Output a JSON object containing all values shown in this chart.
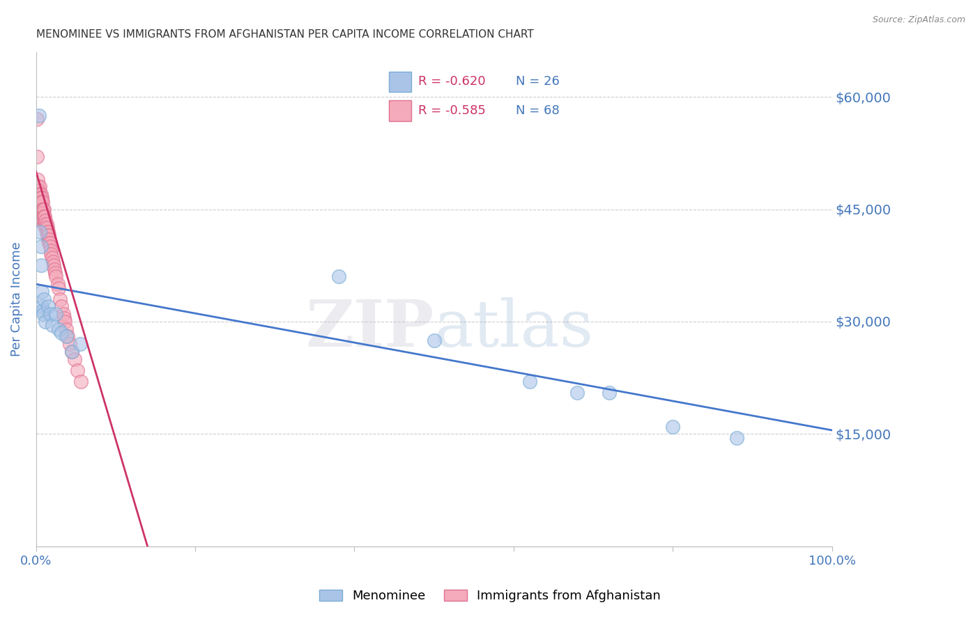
{
  "title": "MENOMINEE VS IMMIGRANTS FROM AFGHANISTAN PER CAPITA INCOME CORRELATION CHART",
  "source": "Source: ZipAtlas.com",
  "ylabel": "Per Capita Income",
  "watermark_zip": "ZIP",
  "watermark_atlas": "atlas",
  "legend_blue_r": "R = -0.620",
  "legend_blue_n": "N = 26",
  "legend_pink_r": "R = -0.585",
  "legend_pink_n": "N = 68",
  "legend_label_blue": "Menominee",
  "legend_label_pink": "Immigrants from Afghanistan",
  "blue_scatter_color": "#AAC4E8",
  "blue_scatter_edge": "#7AADD4",
  "pink_scatter_color": "#F4AABB",
  "pink_scatter_edge": "#E07090",
  "line_blue_color": "#4477CC",
  "line_pink_color": "#CC3366",
  "xlim": [
    0.0,
    1.0
  ],
  "ylim": [
    0,
    66000
  ],
  "yticks": [
    0,
    15000,
    30000,
    45000,
    60000
  ],
  "ytick_labels": [
    "",
    "$15,000",
    "$30,000",
    "$45,000",
    "$60,000"
  ],
  "xtick_positions": [
    0.0,
    0.2,
    0.4,
    0.6,
    0.8,
    1.0
  ],
  "xtick_labels": [
    "0.0%",
    "",
    "",
    "",
    "",
    "100.0%"
  ],
  "blue_x": [
    0.004,
    0.005,
    0.006,
    0.006,
    0.007,
    0.007,
    0.008,
    0.009,
    0.01,
    0.012,
    0.015,
    0.018,
    0.02,
    0.025,
    0.028,
    0.032,
    0.038,
    0.045,
    0.055,
    0.38,
    0.5,
    0.62,
    0.68,
    0.72,
    0.8,
    0.88
  ],
  "blue_y": [
    57500,
    42000,
    40000,
    37500,
    34000,
    32000,
    31500,
    31000,
    33000,
    30000,
    32000,
    31000,
    29500,
    31000,
    29000,
    28500,
    28000,
    26000,
    27000,
    36000,
    27500,
    22000,
    20500,
    20500,
    16000,
    14500
  ],
  "pink_x": [
    0.001,
    0.0015,
    0.002,
    0.0025,
    0.003,
    0.003,
    0.003,
    0.004,
    0.004,
    0.005,
    0.005,
    0.005,
    0.005,
    0.005,
    0.006,
    0.006,
    0.006,
    0.006,
    0.007,
    0.007,
    0.007,
    0.008,
    0.008,
    0.008,
    0.009,
    0.009,
    0.009,
    0.009,
    0.01,
    0.01,
    0.01,
    0.011,
    0.011,
    0.012,
    0.012,
    0.013,
    0.013,
    0.014,
    0.014,
    0.015,
    0.015,
    0.016,
    0.016,
    0.017,
    0.018,
    0.018,
    0.019,
    0.019,
    0.02,
    0.021,
    0.022,
    0.023,
    0.024,
    0.025,
    0.027,
    0.028,
    0.03,
    0.032,
    0.034,
    0.035,
    0.036,
    0.038,
    0.04,
    0.042,
    0.045,
    0.048,
    0.052,
    0.056
  ],
  "pink_y": [
    57000,
    52000,
    49000,
    47500,
    48000,
    47500,
    47000,
    47500,
    47000,
    48000,
    47000,
    46500,
    46000,
    45500,
    47000,
    46500,
    46000,
    45500,
    46500,
    46000,
    45000,
    46000,
    45000,
    44500,
    45000,
    44500,
    44000,
    43500,
    45000,
    44000,
    43000,
    44000,
    43000,
    43500,
    42500,
    43000,
    42000,
    42500,
    41500,
    42000,
    41000,
    41500,
    40500,
    41000,
    40500,
    40000,
    39500,
    39000,
    38500,
    38000,
    37500,
    37000,
    36500,
    36000,
    35000,
    34500,
    33000,
    32000,
    31000,
    30500,
    30000,
    29000,
    28000,
    27000,
    26000,
    25000,
    23500,
    22000
  ],
  "blue_line_x0": 0.0,
  "blue_line_x1": 1.0,
  "blue_line_y0": 35000,
  "blue_line_y1": 15500,
  "pink_line_x0": 0.0,
  "pink_line_x1": 0.14,
  "pink_line_y0": 50000,
  "pink_line_y1": 0,
  "title_fontsize": 11,
  "axis_label_color": "#4477BB",
  "grid_color": "#CCCCCC",
  "background_color": "#FFFFFF"
}
